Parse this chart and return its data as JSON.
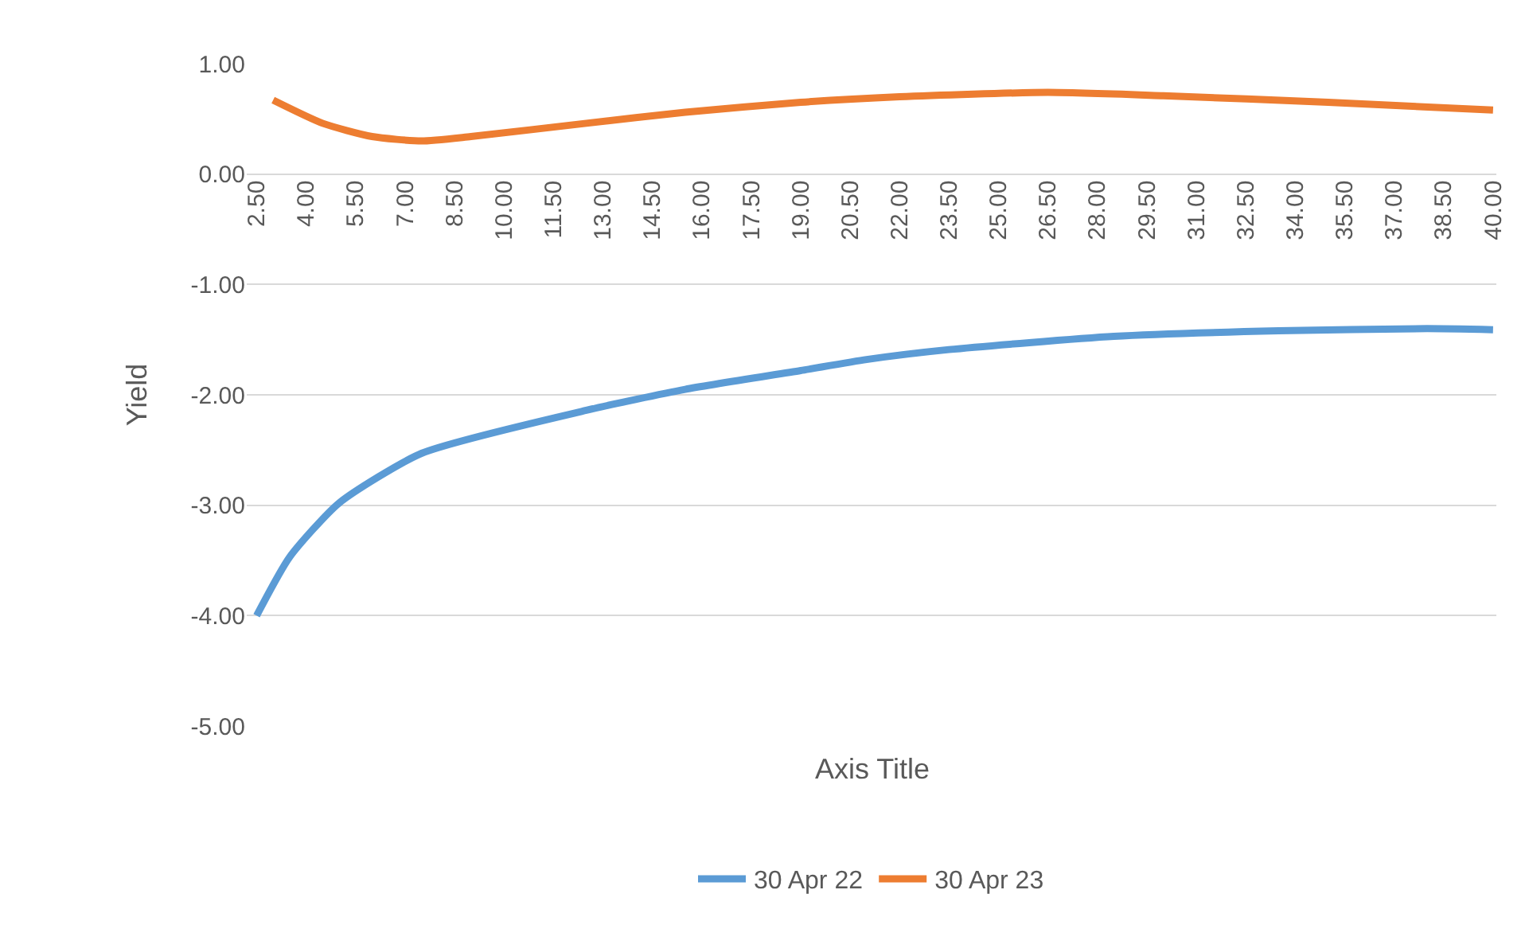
{
  "chart_data": {
    "type": "line",
    "xlabel": "Axis Title",
    "ylabel": "Yield",
    "xlim": [
      2.2,
      40.1
    ],
    "ylim": [
      -5,
      1
    ],
    "xticks": [
      {
        "value": 2.5,
        "label": "2.50"
      },
      {
        "value": 4,
        "label": "4.00"
      },
      {
        "value": 5.5,
        "label": "5.50"
      },
      {
        "value": 7,
        "label": "7.00"
      },
      {
        "value": 8.5,
        "label": "8.50"
      },
      {
        "value": 10,
        "label": "10.00"
      },
      {
        "value": 11.5,
        "label": "11.50"
      },
      {
        "value": 13,
        "label": "13.00"
      },
      {
        "value": 14.5,
        "label": "14.50"
      },
      {
        "value": 16,
        "label": "16.00"
      },
      {
        "value": 17.5,
        "label": "17.50"
      },
      {
        "value": 19,
        "label": "19.00"
      },
      {
        "value": 20.5,
        "label": "20.50"
      },
      {
        "value": 22,
        "label": "22.00"
      },
      {
        "value": 23.5,
        "label": "23.50"
      },
      {
        "value": 25,
        "label": "25.00"
      },
      {
        "value": 26.5,
        "label": "26.50"
      },
      {
        "value": 28,
        "label": "28.00"
      },
      {
        "value": 29.5,
        "label": "29.50"
      },
      {
        "value": 31,
        "label": "31.00"
      },
      {
        "value": 32.5,
        "label": "32.50"
      },
      {
        "value": 34,
        "label": "34.00"
      },
      {
        "value": 35.5,
        "label": "35.50"
      },
      {
        "value": 37,
        "label": "37.00"
      },
      {
        "value": 38.5,
        "label": "38.50"
      },
      {
        "value": 40,
        "label": "40.00"
      }
    ],
    "yticks": [
      {
        "value": -5,
        "label": "-5.00"
      },
      {
        "value": -4,
        "label": "-4.00"
      },
      {
        "value": -3,
        "label": "-3.00"
      },
      {
        "value": -2,
        "label": "-2.00"
      },
      {
        "value": -1,
        "label": "-1.00"
      },
      {
        "value": 0,
        "label": "0.00"
      },
      {
        "value": 1,
        "label": "1.00"
      }
    ],
    "grid": "y",
    "legend": "bottom",
    "marker": "none",
    "line_style": "solid",
    "series": [
      {
        "name": "30 Apr 22",
        "color": "#5b9bd5",
        "x": [
          2.5,
          3.5,
          5,
          7.5,
          12.5,
          15.5,
          19,
          21,
          23.5,
          28.5,
          33.5,
          38,
          40
        ],
        "values": [
          -4.0,
          -3.47,
          -2.98,
          -2.53,
          -2.14,
          -1.95,
          -1.78,
          -1.68,
          -1.59,
          -1.47,
          -1.42,
          -1.4,
          -1.41
        ]
      },
      {
        "name": "30 Apr 23",
        "color": "#ed7d31",
        "x": [
          3,
          4.5,
          6,
          7.5,
          9,
          12.5,
          15.5,
          19,
          22,
          26.5,
          30,
          35,
          40
        ],
        "values": [
          0.67,
          0.46,
          0.34,
          0.3,
          0.34,
          0.46,
          0.56,
          0.65,
          0.7,
          0.74,
          0.71,
          0.65,
          0.58
        ]
      }
    ]
  }
}
